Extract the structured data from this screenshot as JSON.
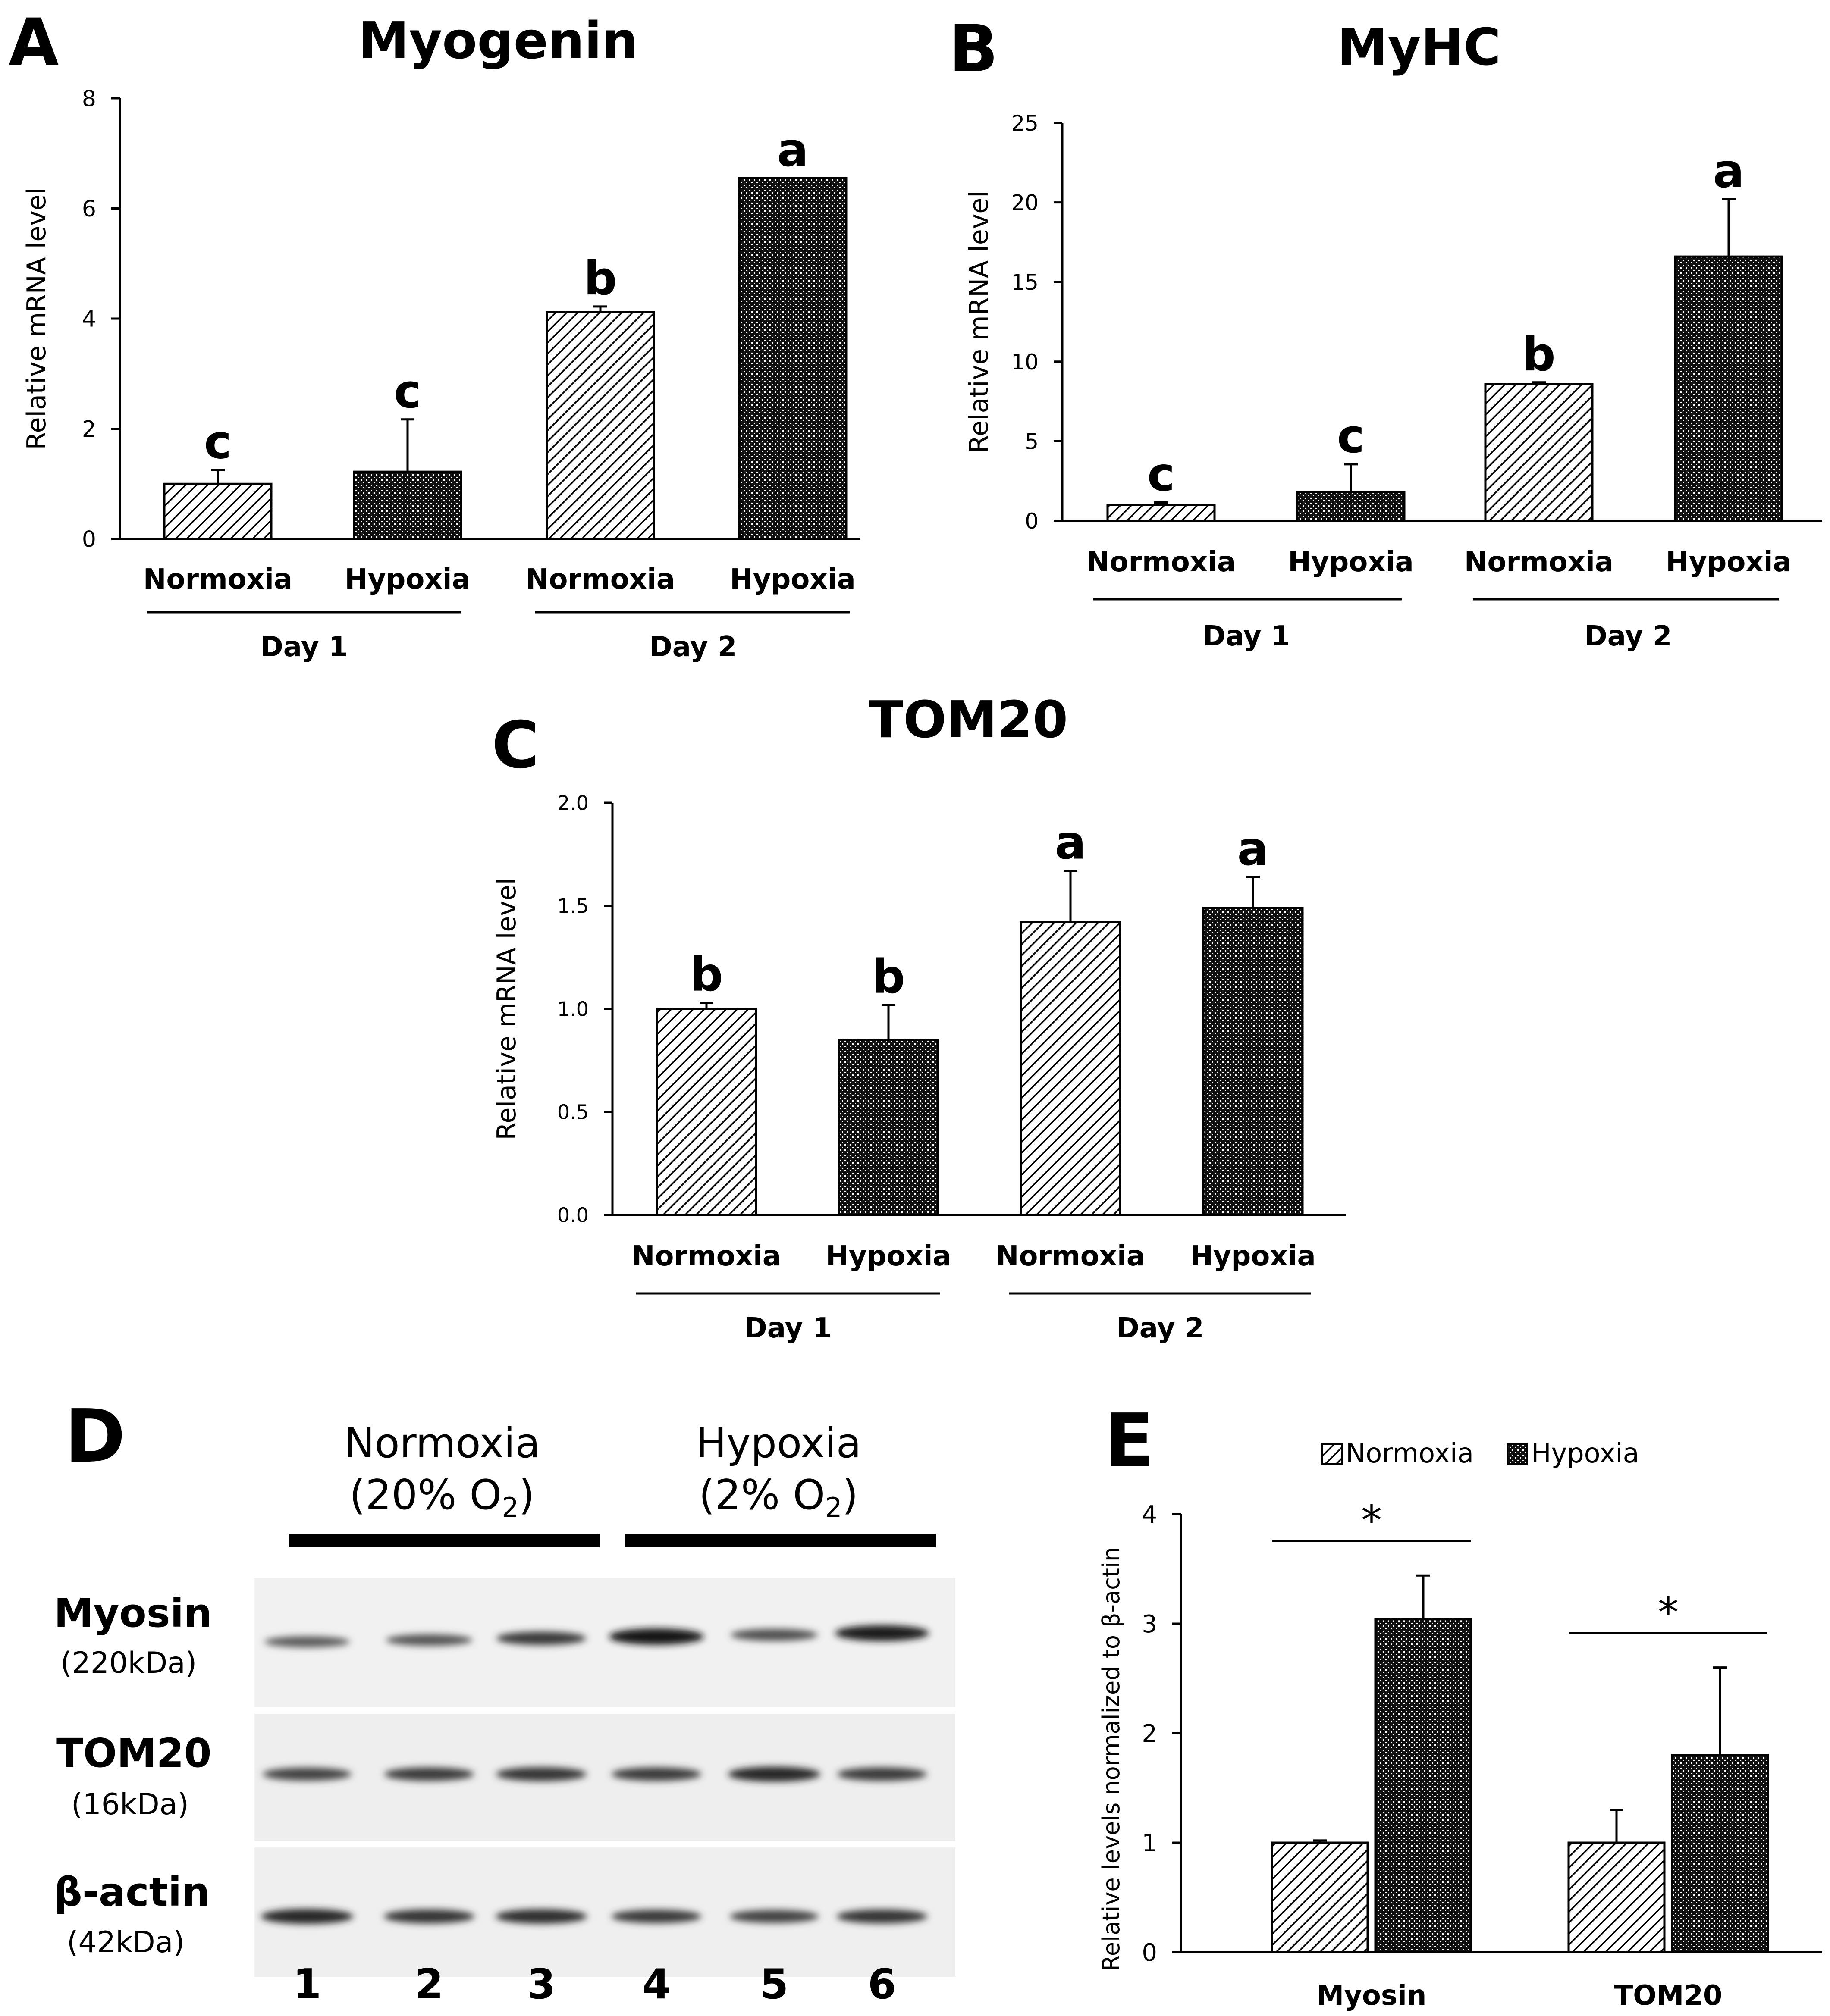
{
  "panels": {
    "A": "A",
    "B": "B",
    "C": "C",
    "D": "D",
    "E": "E"
  },
  "chart_data": [
    {
      "id": "A",
      "type": "bar",
      "title": "Myogenin",
      "ylabel": "Relative mRNA level",
      "ylim": [
        0,
        8
      ],
      "yticks": [
        "0",
        "2",
        "4",
        "6",
        "8"
      ],
      "categories": [
        "Normoxia",
        "Hypoxia",
        "Normoxia",
        "Hypoxia"
      ],
      "groups": [
        "Day 1",
        "Day 2"
      ],
      "values": [
        1.0,
        1.22,
        4.12,
        6.55
      ],
      "errors": [
        0.25,
        0.95,
        0.1,
        0
      ],
      "letters": [
        "c",
        "c",
        "b",
        "a"
      ]
    },
    {
      "id": "B",
      "type": "bar",
      "title": "MyHC",
      "ylabel": "Relative mRNA level",
      "ylim": [
        0,
        25
      ],
      "yticks": [
        "0",
        "5",
        "10",
        "15",
        "20",
        "25"
      ],
      "categories": [
        "Normoxia",
        "Hypoxia",
        "Normoxia",
        "Hypoxia"
      ],
      "groups": [
        "Day 1",
        "Day 2"
      ],
      "values": [
        1.0,
        1.8,
        8.6,
        16.6
      ],
      "errors": [
        0.15,
        1.75,
        0.1,
        3.6
      ],
      "letters": [
        "c",
        "c",
        "b",
        "a"
      ]
    },
    {
      "id": "C",
      "type": "bar",
      "title": "TOM20",
      "ylabel": "Relative mRNA level",
      "ylim": [
        0,
        2.0
      ],
      "yticks": [
        "0.0",
        "0.5",
        "1.0",
        "1.5",
        "2.0"
      ],
      "categories": [
        "Normoxia",
        "Hypoxia",
        "Normoxia",
        "Hypoxia"
      ],
      "groups": [
        "Day 1",
        "Day 2"
      ],
      "values": [
        1.0,
        0.85,
        1.42,
        1.49
      ],
      "errors": [
        0.03,
        0.17,
        0.25,
        0.15
      ],
      "letters": [
        "b",
        "b",
        "a",
        "a"
      ]
    },
    {
      "id": "E",
      "type": "bar",
      "title": "",
      "ylabel": "Relative levels normalized to β-actin",
      "ylim": [
        0,
        4
      ],
      "yticks": [
        "0",
        "1",
        "2",
        "3",
        "4"
      ],
      "categories": [
        "Myosin",
        "TOM20"
      ],
      "series": [
        {
          "name": "Normoxia",
          "values": [
            1.0,
            1.0
          ],
          "errors": [
            0.02,
            0.3
          ]
        },
        {
          "name": "Hypoxia",
          "values": [
            3.04,
            1.8
          ],
          "errors": [
            0.4,
            0.8
          ]
        }
      ],
      "significance": [
        "*",
        "*"
      ]
    }
  ],
  "blot": {
    "headers": [
      {
        "line1": "Normoxia",
        "line2_pre": "(20% O",
        "sub": "2",
        "line2_post": ")"
      },
      {
        "line1": "Hypoxia",
        "line2_pre": "(2% O",
        "sub": "2",
        "line2_post": ")"
      }
    ],
    "rows": [
      {
        "name": "Myosin",
        "size": "(220kDa)",
        "intensity": [
          0.45,
          0.5,
          0.7,
          1.0,
          0.55,
          0.95
        ]
      },
      {
        "name": "TOM20",
        "size": "(16kDa)",
        "intensity": [
          0.65,
          0.7,
          0.75,
          0.7,
          0.85,
          0.7
        ]
      },
      {
        "name": "β-actin",
        "size": "(42kDa)",
        "intensity": [
          0.85,
          0.75,
          0.8,
          0.7,
          0.65,
          0.75
        ]
      }
    ],
    "lanes": [
      "1",
      "2",
      "3",
      "4",
      "5",
      "6"
    ]
  }
}
